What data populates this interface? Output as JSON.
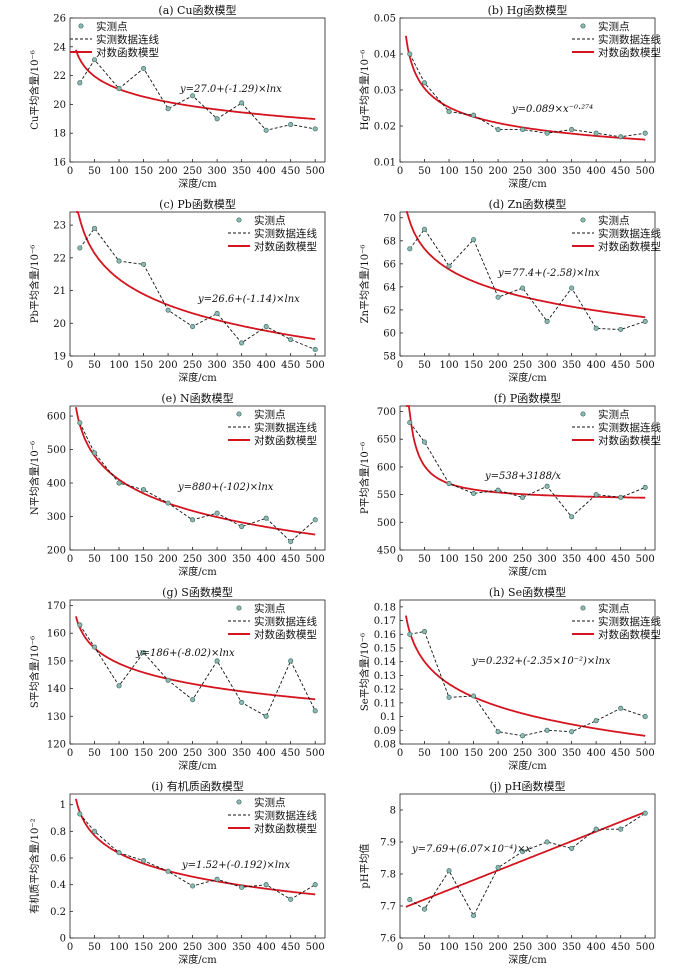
{
  "legend": {
    "points": "实测点",
    "dashed": "实测数据连线",
    "model": "对数函数模型"
  },
  "colors": {
    "model_line": "#d4141e",
    "points_fill": "#8fb8b0",
    "points_stroke": "#3f6f68",
    "dashed_line": "#111111"
  },
  "chart_data": [
    {
      "id": "a",
      "type": "line",
      "title": "(a) Cu函数模型",
      "xlabel": "深度/cm",
      "ylabel": "Cu平均含量/10⁻⁶",
      "xlim": [
        0,
        520
      ],
      "ylim": [
        16,
        26
      ],
      "xticks": [
        0,
        50,
        100,
        150,
        200,
        250,
        300,
        350,
        400,
        450,
        500
      ],
      "yticks": [
        16,
        18,
        20,
        22,
        24,
        26
      ],
      "formula": "y=27.0+(-1.29)×lnx",
      "model": {
        "kind": "log",
        "a": 27.0,
        "b": -1.29
      },
      "series": [
        {
          "name": "实测点",
          "x": [
            20,
            50,
            100,
            150,
            200,
            250,
            300,
            350,
            400,
            450,
            500
          ],
          "y": [
            21.5,
            23.1,
            21.1,
            22.5,
            19.7,
            20.6,
            19.0,
            20.1,
            18.2,
            18.6,
            18.3
          ]
        },
        {
          "name": "实测数据连线"
        },
        {
          "name": "对数函数模型"
        }
      ]
    },
    {
      "id": "b",
      "type": "line",
      "title": "(b) Hg函数模型",
      "xlabel": "深度/cm",
      "ylabel": "Hg平均含量/10⁻⁶",
      "xlim": [
        0,
        520
      ],
      "ylim": [
        0.01,
        0.05
      ],
      "xticks": [
        0,
        50,
        100,
        150,
        200,
        250,
        300,
        350,
        400,
        450,
        500
      ],
      "yticks": [
        0.01,
        0.02,
        0.03,
        0.04,
        0.05
      ],
      "formula": "y=0.089×x⁻⁰·²⁷⁴",
      "model": {
        "kind": "power",
        "a": 0.089,
        "b": -0.274
      },
      "series": [
        {
          "name": "实测点",
          "x": [
            20,
            50,
            100,
            150,
            200,
            250,
            300,
            350,
            400,
            450,
            500
          ],
          "y": [
            0.04,
            0.032,
            0.024,
            0.023,
            0.019,
            0.019,
            0.018,
            0.019,
            0.018,
            0.017,
            0.018
          ]
        },
        {
          "name": "实测数据连线"
        },
        {
          "name": "对数函数模型"
        }
      ]
    },
    {
      "id": "c",
      "type": "line",
      "title": "(c) Pb函数模型",
      "xlabel": "深度/cm",
      "ylabel": "Pb平均含量/10⁻⁶",
      "xlim": [
        0,
        520
      ],
      "ylim": [
        19,
        23.4
      ],
      "xticks": [
        0,
        50,
        100,
        150,
        200,
        250,
        300,
        350,
        400,
        450,
        500
      ],
      "yticks": [
        19,
        20,
        21,
        22,
        23
      ],
      "formula": "y=26.6+(-1.14)×lnx",
      "model": {
        "kind": "log",
        "a": 26.6,
        "b": -1.14
      },
      "series": [
        {
          "name": "实测点",
          "x": [
            20,
            50,
            100,
            150,
            200,
            250,
            300,
            350,
            400,
            450,
            500
          ],
          "y": [
            22.3,
            22.9,
            21.9,
            21.8,
            20.4,
            19.9,
            20.3,
            19.4,
            19.9,
            19.5,
            19.2
          ]
        },
        {
          "name": "实测数据连线"
        },
        {
          "name": "对数函数模型"
        }
      ]
    },
    {
      "id": "d",
      "type": "line",
      "title": "(d) Zn函数模型",
      "xlabel": "深度/cm",
      "ylabel": "Zn平均含量/10⁻⁶",
      "xlim": [
        0,
        520
      ],
      "ylim": [
        58,
        70.5
      ],
      "xticks": [
        0,
        50,
        100,
        150,
        200,
        250,
        300,
        350,
        400,
        450,
        500
      ],
      "yticks": [
        58,
        60,
        62,
        64,
        66,
        68,
        70
      ],
      "formula": "y=77.4+(-2.58)×lnx",
      "model": {
        "kind": "log",
        "a": 77.4,
        "b": -2.58
      },
      "series": [
        {
          "name": "实测点",
          "x": [
            20,
            50,
            100,
            150,
            200,
            250,
            300,
            350,
            400,
            450,
            500
          ],
          "y": [
            67.3,
            69.0,
            65.8,
            68.1,
            63.1,
            63.9,
            61.0,
            63.9,
            60.4,
            60.3,
            61.0
          ]
        },
        {
          "name": "实测数据连线"
        },
        {
          "name": "对数函数模型"
        }
      ]
    },
    {
      "id": "e",
      "type": "line",
      "title": "(e) N函数模型",
      "xlabel": "深度/cm",
      "ylabel": "N平均含量/10⁻⁶",
      "xlim": [
        0,
        520
      ],
      "ylim": [
        200,
        630
      ],
      "xticks": [
        0,
        50,
        100,
        150,
        200,
        250,
        300,
        350,
        400,
        450,
        500
      ],
      "yticks": [
        200,
        300,
        400,
        500,
        600
      ],
      "formula": "y=880+(-102)×lnx",
      "model": {
        "kind": "log",
        "a": 880,
        "b": -102
      },
      "series": [
        {
          "name": "实测点",
          "x": [
            20,
            50,
            100,
            150,
            200,
            250,
            300,
            350,
            400,
            450,
            500
          ],
          "y": [
            580,
            490,
            400,
            380,
            340,
            290,
            310,
            270,
            295,
            225,
            290
          ]
        },
        {
          "name": "实测数据连线"
        },
        {
          "name": "对数函数模型"
        }
      ]
    },
    {
      "id": "f",
      "type": "line",
      "title": "(f) P函数模型",
      "xlabel": "深度/cm",
      "ylabel": "P平均含量/10⁻⁶",
      "xlim": [
        0,
        520
      ],
      "ylim": [
        450,
        710
      ],
      "xticks": [
        0,
        50,
        100,
        150,
        200,
        250,
        300,
        350,
        400,
        450,
        500
      ],
      "yticks": [
        450,
        500,
        550,
        600,
        650,
        700
      ],
      "formula": "y=538+3188/x",
      "model": {
        "kind": "reciprocal",
        "a": 538,
        "b": 3188
      },
      "series": [
        {
          "name": "实测点",
          "x": [
            20,
            50,
            100,
            150,
            200,
            250,
            300,
            350,
            400,
            450,
            500
          ],
          "y": [
            680,
            645,
            570,
            552,
            558,
            545,
            565,
            510,
            550,
            545,
            563
          ]
        },
        {
          "name": "实测数据连线"
        },
        {
          "name": "对数函数模型"
        }
      ]
    },
    {
      "id": "g",
      "type": "line",
      "title": "(g) S函数模型",
      "xlabel": "深度/cm",
      "ylabel": "S平均含量/10⁻⁶",
      "xlim": [
        0,
        520
      ],
      "ylim": [
        120,
        172
      ],
      "xticks": [
        0,
        50,
        100,
        150,
        200,
        250,
        300,
        350,
        400,
        450,
        500
      ],
      "yticks": [
        120,
        130,
        140,
        150,
        160,
        170
      ],
      "formula": "y=186+(-8.02)×lnx",
      "model": {
        "kind": "log",
        "a": 186,
        "b": -8.02
      },
      "series": [
        {
          "name": "实测点",
          "x": [
            20,
            50,
            100,
            150,
            200,
            250,
            300,
            350,
            400,
            450,
            500
          ],
          "y": [
            163,
            155,
            141,
            153,
            143,
            136,
            150,
            135,
            130,
            150,
            132
          ]
        },
        {
          "name": "实测数据连线"
        },
        {
          "name": "对数函数模型"
        }
      ]
    },
    {
      "id": "h",
      "type": "line",
      "title": "(h) Se函数模型",
      "xlabel": "深度/cm",
      "ylabel": "Se平均含量/10⁻⁶",
      "xlim": [
        0,
        520
      ],
      "ylim": [
        0.08,
        0.185
      ],
      "xticks": [
        0,
        50,
        100,
        150,
        200,
        250,
        300,
        350,
        400,
        450,
        500
      ],
      "yticks": [
        0.08,
        0.09,
        0.1,
        0.11,
        0.12,
        0.13,
        0.14,
        0.15,
        0.16,
        0.17,
        0.18
      ],
      "formula": "y=0.232+(-2.35×10⁻²)×lnx",
      "model": {
        "kind": "log",
        "a": 0.232,
        "b": -0.0235
      },
      "series": [
        {
          "name": "实测点",
          "x": [
            20,
            50,
            100,
            150,
            200,
            250,
            300,
            350,
            400,
            450,
            500
          ],
          "y": [
            0.16,
            0.162,
            0.114,
            0.115,
            0.089,
            0.086,
            0.09,
            0.089,
            0.097,
            0.106,
            0.1
          ]
        },
        {
          "name": "实测数据连线"
        },
        {
          "name": "对数函数模型"
        }
      ]
    },
    {
      "id": "i",
      "type": "line",
      "title": "(i) 有机质函数模型",
      "xlabel": "深度/cm",
      "ylabel": "有机质平均含量/10⁻²",
      "xlim": [
        0,
        520
      ],
      "ylim": [
        0,
        1.08
      ],
      "xticks": [
        0,
        50,
        100,
        150,
        200,
        250,
        300,
        350,
        400,
        450,
        500
      ],
      "yticks": [
        0,
        0.2,
        0.4,
        0.6,
        0.8,
        1.0
      ],
      "formula": "y=1.52+(-0.192)×lnx",
      "model": {
        "kind": "log",
        "a": 1.52,
        "b": -0.192
      },
      "series": [
        {
          "name": "实测点",
          "x": [
            20,
            50,
            100,
            150,
            200,
            250,
            300,
            350,
            400,
            450,
            500
          ],
          "y": [
            0.93,
            0.8,
            0.64,
            0.58,
            0.5,
            0.39,
            0.44,
            0.38,
            0.4,
            0.29,
            0.4
          ]
        },
        {
          "name": "实测数据连线"
        },
        {
          "name": "对数函数模型"
        }
      ]
    },
    {
      "id": "j",
      "type": "line",
      "title": "(j) pH函数模型",
      "xlabel": "深度/cm",
      "ylabel": "pH平均值",
      "xlim": [
        0,
        520
      ],
      "ylim": [
        7.6,
        8.05
      ],
      "xticks": [
        0,
        50,
        100,
        150,
        200,
        250,
        300,
        350,
        400,
        450,
        500
      ],
      "yticks": [
        7.6,
        7.7,
        7.8,
        7.9,
        8.0
      ],
      "formula": "y=7.69+(6.07×10⁻⁴)×x",
      "model": {
        "kind": "linear",
        "a": 7.69,
        "b": 0.000607
      },
      "series": [
        {
          "name": "实测点",
          "x": [
            20,
            50,
            100,
            150,
            200,
            250,
            300,
            350,
            400,
            450,
            500
          ],
          "y": [
            7.72,
            7.69,
            7.81,
            7.67,
            7.82,
            7.87,
            7.9,
            7.88,
            7.94,
            7.94,
            7.99
          ]
        },
        {
          "name": "实测数据连线"
        },
        {
          "name": "对数函数模型"
        }
      ]
    }
  ]
}
